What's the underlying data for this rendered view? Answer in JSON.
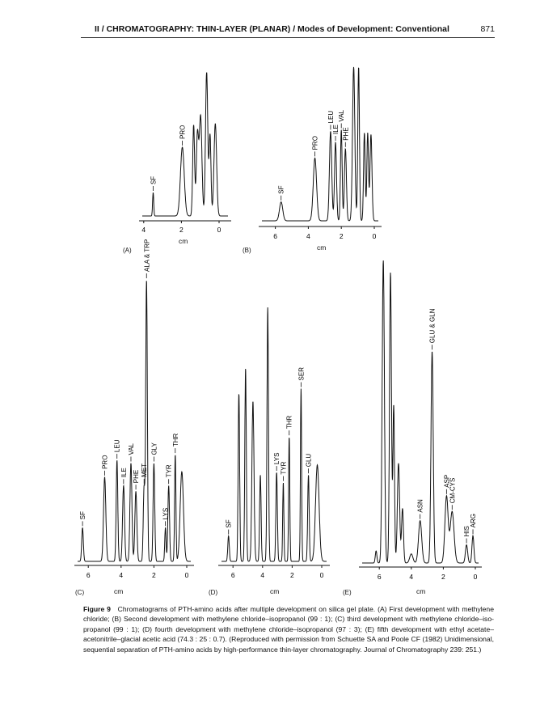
{
  "header": {
    "running_title": "II / CHROMATOGRAPHY: THIN-LAYER (PLANAR) / Modes of Development: Conventional",
    "page_number": "871"
  },
  "caption": {
    "label": "Figure 9",
    "text": "Chromatograms of PTH-amino acids after multiple development on silica gel plate. (A) First development with methylene chloride; (B) Second development with methylene chloride–isopropanol (99 : 1); (C) third development with methylene chloride–iso-propanol (99 : 1); (D) fourth development with methylene chloride–isopropanol (97 : 3); (E) fifth development with ethyl acetate–acetonitrile–glacial acetic acid (74.3 : 25 : 0.7). (Reproduced with permission from Schuette SA and Poole CF (1982) Unidimensional, sequential separation of PTH-amino acids by high-performance thin-layer chromatography. Journal of Chromatography 239: 251.)"
  },
  "chart_data": [
    {
      "panel": "(A)",
      "type": "line",
      "xlabel": "cm",
      "xreversed": true,
      "xticks": [
        "4",
        "2",
        "0"
      ],
      "xtick_values": [
        4,
        2,
        0
      ],
      "xlim": [
        4.3,
        -0.7
      ],
      "y_units": "relative detector response",
      "peaks": [
        {
          "x": 3.5,
          "h": 0.16,
          "w": 0.03,
          "label": "SF"
        },
        {
          "x": 1.95,
          "h": 0.47,
          "w": 0.1,
          "label": "PRO"
        },
        {
          "x": 1.35,
          "h": 0.62,
          "w": 0.05
        },
        {
          "x": 1.15,
          "h": 0.55,
          "w": 0.06
        },
        {
          "x": 0.98,
          "h": 0.68,
          "w": 0.07
        },
        {
          "x": 0.66,
          "h": 0.98,
          "w": 0.06
        },
        {
          "x": 0.48,
          "h": 0.55,
          "w": 0.05
        },
        {
          "x": 0.2,
          "h": 0.63,
          "w": 0.07
        }
      ]
    },
    {
      "panel": "(B)",
      "type": "line",
      "xlabel": "cm",
      "xreversed": true,
      "xticks": [
        "6",
        "4",
        "2",
        "0"
      ],
      "xtick_values": [
        6,
        4,
        2,
        0
      ],
      "xlim": [
        7.0,
        -0.45
      ],
      "y_units": "relative detector response",
      "peaks": [
        {
          "x": 5.65,
          "h": 0.12,
          "w": 0.1,
          "label": "SF"
        },
        {
          "x": 3.6,
          "h": 0.4,
          "w": 0.1,
          "label": "PRO"
        },
        {
          "x": 2.65,
          "h": 0.57,
          "w": 0.07,
          "label": "LEU"
        },
        {
          "x": 2.35,
          "h": 0.5,
          "w": 0.06,
          "label": "ILE"
        },
        {
          "x": 2.0,
          "h": 0.58,
          "w": 0.05,
          "label": "VAL"
        },
        {
          "x": 1.75,
          "h": 0.46,
          "w": 0.06,
          "label": "PHE"
        },
        {
          "x": 1.25,
          "h": 0.98,
          "w": 0.07
        },
        {
          "x": 0.95,
          "h": 0.98,
          "w": 0.05
        },
        {
          "x": 0.6,
          "h": 0.56,
          "w": 0.05
        },
        {
          "x": 0.4,
          "h": 0.56,
          "w": 0.05
        },
        {
          "x": 0.2,
          "h": 0.55,
          "w": 0.06
        }
      ]
    },
    {
      "panel": "(C)",
      "type": "line",
      "xlabel": "cm",
      "xreversed": true,
      "xticks": [
        "6",
        "4",
        "2",
        "0"
      ],
      "xtick_values": [
        6,
        4,
        2,
        0
      ],
      "xlim": [
        6.9,
        -0.45
      ],
      "y_units": "relative detector response",
      "peaks": [
        {
          "x": 6.35,
          "h": 0.12,
          "w": 0.05,
          "label": "SF"
        },
        {
          "x": 5.0,
          "h": 0.3,
          "w": 0.07,
          "label": "PRO"
        },
        {
          "x": 4.25,
          "h": 0.36,
          "w": 0.05,
          "label": "LEU"
        },
        {
          "x": 3.85,
          "h": 0.27,
          "w": 0.06,
          "label": "ILE"
        },
        {
          "x": 3.4,
          "h": 0.35,
          "w": 0.06,
          "label": "VAL"
        },
        {
          "x": 3.1,
          "h": 0.25,
          "w": 0.06,
          "label": "PHE"
        },
        {
          "x": 2.6,
          "h": 0.26,
          "w": 0.05,
          "label": "MET"
        },
        {
          "x": 2.45,
          "h": 1.0,
          "w": 0.05,
          "label": "ALA & TRP"
        },
        {
          "x": 2.0,
          "h": 0.35,
          "w": 0.05,
          "label": "GLY"
        },
        {
          "x": 1.3,
          "h": 0.12,
          "w": 0.04,
          "label": "LYS"
        },
        {
          "x": 1.1,
          "h": 0.27,
          "w": 0.05,
          "label": "TYR"
        },
        {
          "x": 0.7,
          "h": 0.38,
          "w": 0.04,
          "label": "THR"
        },
        {
          "x": 0.3,
          "h": 0.32,
          "w": 0.1
        }
      ]
    },
    {
      "panel": "(D)",
      "type": "line",
      "xlabel": "cm",
      "xreversed": true,
      "xticks": [
        "6",
        "4",
        "2",
        "0"
      ],
      "xtick_values": [
        6,
        4,
        2,
        0
      ],
      "xlim": [
        7.0,
        -0.55
      ],
      "y_units": "relative detector response",
      "peaks": [
        {
          "x": 6.3,
          "h": 0.1,
          "w": 0.05,
          "label": "SF"
        },
        {
          "x": 5.6,
          "h": 0.66,
          "w": 0.05
        },
        {
          "x": 5.15,
          "h": 0.76,
          "w": 0.05
        },
        {
          "x": 4.65,
          "h": 0.63,
          "w": 0.07
        },
        {
          "x": 4.15,
          "h": 0.34,
          "w": 0.05
        },
        {
          "x": 3.65,
          "h": 1.0,
          "w": 0.05
        },
        {
          "x": 3.05,
          "h": 0.35,
          "w": 0.05,
          "label": "LYS"
        },
        {
          "x": 2.6,
          "h": 0.31,
          "w": 0.04,
          "label": "TYR"
        },
        {
          "x": 2.2,
          "h": 0.49,
          "w": 0.04,
          "label": "THR"
        },
        {
          "x": 1.4,
          "h": 0.68,
          "w": 0.04,
          "label": "SER"
        },
        {
          "x": 0.9,
          "h": 0.34,
          "w": 0.05,
          "label": "GLU"
        },
        {
          "x": 0.3,
          "h": 0.38,
          "w": 0.12
        }
      ]
    },
    {
      "panel": "(E)",
      "type": "line",
      "xlabel": "cm",
      "xreversed": true,
      "xticks": [
        "6",
        "4",
        "2",
        "0"
      ],
      "xtick_values": [
        6,
        4,
        2,
        0
      ],
      "xlim": [
        7.3,
        -0.6
      ],
      "y_units": "relative detector response",
      "peaks": [
        {
          "x": 6.2,
          "h": 0.04,
          "w": 0.05
        },
        {
          "x": 5.75,
          "h": 1.0,
          "w": 0.07
        },
        {
          "x": 5.3,
          "h": 0.96,
          "w": 0.06
        },
        {
          "x": 5.1,
          "h": 0.52,
          "w": 0.05
        },
        {
          "x": 4.8,
          "h": 0.33,
          "w": 0.07
        },
        {
          "x": 4.55,
          "h": 0.18,
          "w": 0.06
        },
        {
          "x": 4.0,
          "h": 0.03,
          "w": 0.1
        },
        {
          "x": 3.45,
          "h": 0.14,
          "w": 0.1,
          "label": "ASN"
        },
        {
          "x": 2.7,
          "h": 0.7,
          "w": 0.07,
          "label": "GLU & GLN"
        },
        {
          "x": 1.8,
          "h": 0.22,
          "w": 0.1,
          "label": "ASP"
        },
        {
          "x": 1.45,
          "h": 0.17,
          "w": 0.12,
          "label": "CM-CYS"
        },
        {
          "x": 0.55,
          "h": 0.06,
          "w": 0.07,
          "label": "HIS"
        },
        {
          "x": 0.15,
          "h": 0.09,
          "w": 0.06,
          "label": "ARG"
        }
      ]
    }
  ]
}
